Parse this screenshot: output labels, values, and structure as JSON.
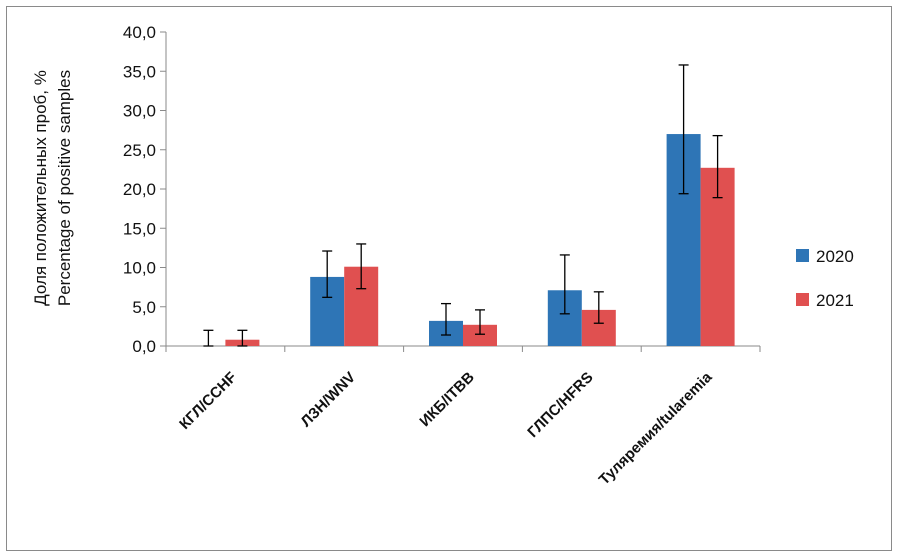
{
  "chart_data": {
    "type": "bar",
    "ylabel_line1": "Доля положительных проб, %",
    "ylabel_line2": "Percentage of positive samples",
    "ylim": [
      0,
      40
    ],
    "yticks": [
      "0,0",
      "5,0",
      "10,0",
      "15,0",
      "20,0",
      "25,0",
      "30,0",
      "35,0",
      "40,0"
    ],
    "categories": [
      "КГЛ/CCHF",
      "ЛЗН/WNV",
      "ИКБ/ITBB",
      "ГЛПС/HFRS",
      "Туляремия/tularemia"
    ],
    "series": [
      {
        "name": "2020",
        "color": "#2e75b6",
        "values": [
          0.0,
          8.8,
          3.2,
          7.1,
          27.0
        ],
        "err_low": [
          0.0,
          6.2,
          1.4,
          4.1,
          19.4
        ],
        "err_high": [
          2.0,
          12.1,
          5.4,
          11.6,
          35.8
        ]
      },
      {
        "name": "2021",
        "color": "#e05050",
        "values": [
          0.8,
          10.1,
          2.7,
          4.6,
          22.7
        ],
        "err_low": [
          0.0,
          7.3,
          1.5,
          2.9,
          18.9
        ],
        "err_high": [
          2.0,
          13.0,
          4.6,
          6.9,
          26.8
        ]
      }
    ],
    "legend_position": "right",
    "grid": false
  }
}
